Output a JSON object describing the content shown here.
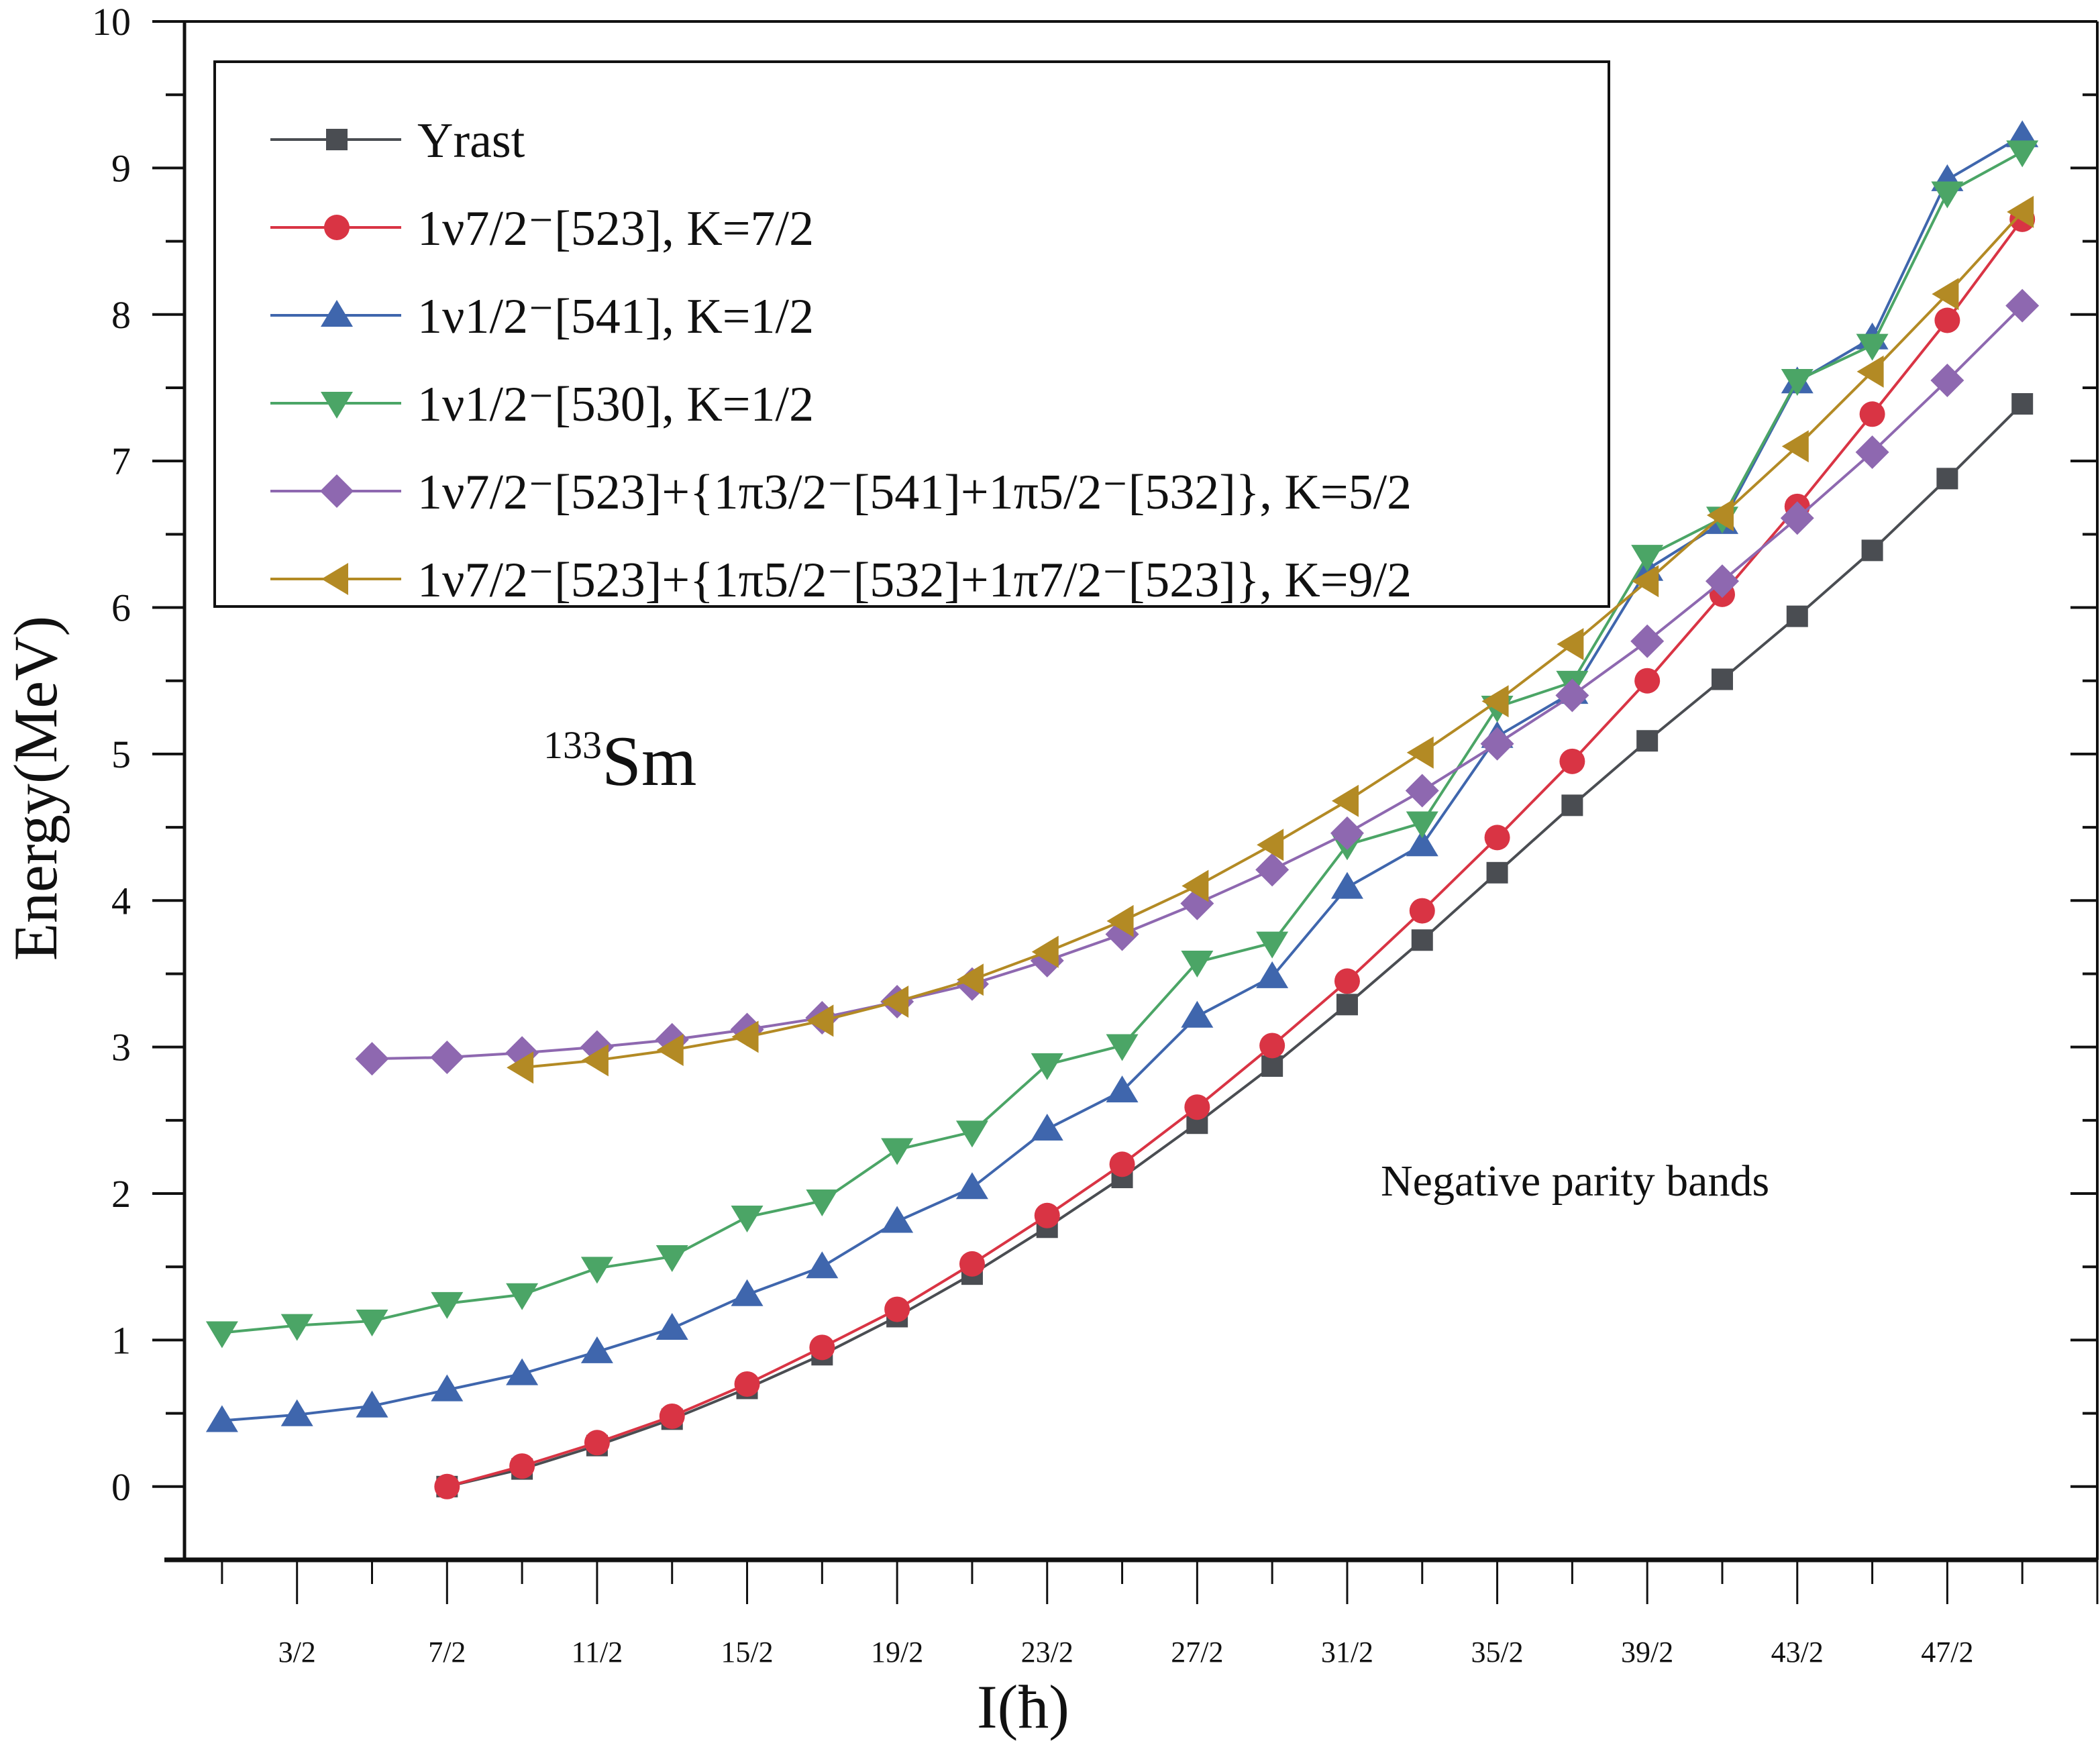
{
  "chart_data": {
    "type": "line",
    "title": "",
    "xlabel": "I(ħ)",
    "ylabel": "Energy(MeV)",
    "xlim": [
      0,
      25.5
    ],
    "ylim": [
      -0.5,
      10
    ],
    "x_unit": "hbar",
    "x_tick_labels": [
      "3/2",
      "7/2",
      "11/2",
      "15/2",
      "19/2",
      "23/2",
      "27/2",
      "31/2",
      "35/2",
      "39/2",
      "43/2",
      "47/2"
    ],
    "x_tick_values": [
      1.5,
      3.5,
      5.5,
      7.5,
      9.5,
      11.5,
      13.5,
      15.5,
      17.5,
      19.5,
      21.5,
      23.5
    ],
    "y_tick_labels": [
      "0",
      "1",
      "2",
      "3",
      "4",
      "5",
      "6",
      "7",
      "8",
      "9",
      "10"
    ],
    "y_tick_values": [
      0,
      1,
      2,
      3,
      4,
      5,
      6,
      7,
      8,
      9,
      10
    ],
    "grid": false,
    "legend_position": "top-left",
    "annotations": [
      {
        "id": "nucleus",
        "mass_number": "133",
        "symbol": "Sm"
      },
      {
        "id": "band-type",
        "text": "Negative parity bands"
      }
    ],
    "series": [
      {
        "name": "Yrast",
        "legend_label": "Yrast",
        "color": "#4a4d52",
        "marker": "square",
        "x": [
          3.5,
          4.5,
          5.5,
          6.5,
          7.5,
          8.5,
          9.5,
          10.5,
          11.5,
          12.5,
          13.5,
          14.5,
          15.5,
          16.5,
          17.5,
          18.5,
          19.5,
          20.5,
          21.5,
          22.5,
          23.5,
          24.5
        ],
        "y": [
          0.0,
          0.12,
          0.28,
          0.46,
          0.67,
          0.9,
          1.16,
          1.45,
          1.77,
          2.11,
          2.48,
          2.87,
          3.29,
          3.73,
          4.19,
          4.65,
          5.09,
          5.51,
          5.94,
          6.39,
          6.88,
          7.39
        ]
      },
      {
        "name": "1v7/2-[523], K=7/2",
        "legend_label": "1ν7/2⁻[523], K=7/2",
        "color": "#d93444",
        "marker": "circle",
        "x": [
          3.5,
          4.5,
          5.5,
          6.5,
          7.5,
          8.5,
          9.5,
          10.5,
          11.5,
          12.5,
          13.5,
          14.5,
          15.5,
          16.5,
          17.5,
          18.5,
          19.5,
          20.5,
          21.5,
          22.5,
          23.5,
          24.5
        ],
        "y": [
          0.0,
          0.14,
          0.3,
          0.48,
          0.7,
          0.95,
          1.21,
          1.52,
          1.85,
          2.2,
          2.59,
          3.01,
          3.45,
          3.93,
          4.43,
          4.95,
          5.5,
          6.09,
          6.69,
          7.32,
          7.96,
          8.65
        ]
      },
      {
        "name": "1v1/2-[541], K=1/2",
        "legend_label": "1ν1/2⁻[541], K=1/2",
        "color": "#3f66ad",
        "marker": "triangle-up",
        "x": [
          0.5,
          1.5,
          2.5,
          3.5,
          4.5,
          5.5,
          6.5,
          7.5,
          8.5,
          9.5,
          10.5,
          11.5,
          12.5,
          13.5,
          14.5,
          15.5,
          16.5,
          17.5,
          18.5,
          19.5,
          20.5,
          21.5,
          22.5,
          23.5,
          24.5
        ],
        "y": [
          0.45,
          0.49,
          0.55,
          0.66,
          0.77,
          0.92,
          1.08,
          1.31,
          1.5,
          1.81,
          2.04,
          2.44,
          2.7,
          3.21,
          3.48,
          4.09,
          4.38,
          5.12,
          5.42,
          6.26,
          6.58,
          7.54,
          7.84,
          8.92,
          9.22
        ]
      },
      {
        "name": "1v1/2-[530], K=1/2",
        "legend_label": "1ν1/2⁻[530], K=1/2",
        "color": "#4ba566",
        "marker": "triangle-down",
        "x": [
          0.5,
          1.5,
          2.5,
          3.5,
          4.5,
          5.5,
          6.5,
          7.5,
          8.5,
          9.5,
          10.5,
          11.5,
          12.5,
          13.5,
          14.5,
          15.5,
          16.5,
          17.5,
          18.5,
          19.5,
          20.5,
          21.5,
          22.5,
          23.5,
          24.5
        ],
        "y": [
          1.05,
          1.1,
          1.13,
          1.25,
          1.31,
          1.49,
          1.57,
          1.84,
          1.95,
          2.3,
          2.42,
          2.88,
          3.01,
          3.58,
          3.71,
          4.38,
          4.53,
          5.32,
          5.49,
          6.35,
          6.61,
          7.55,
          7.79,
          8.83,
          9.11
        ]
      },
      {
        "name": "1v7/2-[523]+{1pi3/2-[541]+1pi5/2-[532]}, K=5/2",
        "legend_label": "1ν7/2⁻[523]+{1π3/2⁻[541]+1π5/2⁻[532]}, K=5/2",
        "color": "#8e68b0",
        "marker": "diamond",
        "x": [
          2.5,
          3.5,
          4.5,
          5.5,
          6.5,
          7.5,
          8.5,
          9.5,
          10.5,
          11.5,
          12.5,
          13.5,
          14.5,
          15.5,
          16.5,
          17.5,
          18.5,
          19.5,
          20.5,
          21.5,
          22.5,
          23.5,
          24.5
        ],
        "y": [
          2.92,
          2.93,
          2.96,
          3.0,
          3.05,
          3.12,
          3.2,
          3.31,
          3.43,
          3.59,
          3.77,
          3.98,
          4.21,
          4.46,
          4.75,
          5.07,
          5.4,
          5.77,
          6.18,
          6.61,
          7.06,
          7.55,
          8.06
        ]
      },
      {
        "name": "1v7/2-[523]+{1pi5/2-[532]+1pi7/2-[523]}, K=9/2",
        "legend_label": "1ν7/2⁻[523]+{1π5/2⁻[532]+1π7/2⁻[523]}, K=9/2",
        "color": "#b38a24",
        "marker": "triangle-left",
        "x": [
          4.5,
          5.5,
          6.5,
          7.5,
          8.5,
          9.5,
          10.5,
          11.5,
          12.5,
          13.5,
          14.5,
          15.5,
          16.5,
          17.5,
          18.5,
          19.5,
          20.5,
          21.5,
          22.5,
          23.5,
          24.5
        ],
        "y": [
          2.86,
          2.91,
          2.98,
          3.07,
          3.18,
          3.31,
          3.46,
          3.65,
          3.86,
          4.1,
          4.38,
          4.68,
          5.01,
          5.36,
          5.75,
          6.18,
          6.63,
          7.1,
          7.61,
          8.14,
          8.7
        ]
      }
    ]
  }
}
